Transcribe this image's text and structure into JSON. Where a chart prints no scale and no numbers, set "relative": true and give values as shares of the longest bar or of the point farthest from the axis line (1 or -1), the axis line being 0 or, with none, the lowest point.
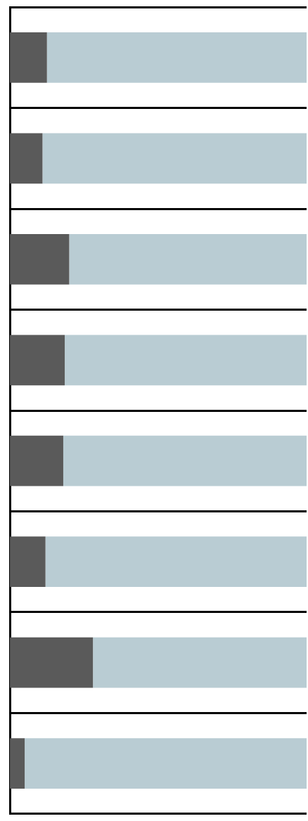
{
  "chart_data": {
    "type": "bar",
    "orientation": "horizontal",
    "stacked": true,
    "relative": true,
    "grid": true,
    "legend": false,
    "categories": [
      null,
      null,
      null,
      null,
      null,
      null,
      null,
      null
    ],
    "series": [
      {
        "color": "#5a5a5a",
        "values": [
          0.125,
          0.11,
          0.2,
          0.185,
          0.18,
          0.12,
          0.28,
          0.05
        ]
      },
      {
        "color": "#b9ccd3",
        "values": [
          0.875,
          0.89,
          0.8,
          0.815,
          0.82,
          0.88,
          0.72,
          0.95
        ]
      }
    ]
  }
}
